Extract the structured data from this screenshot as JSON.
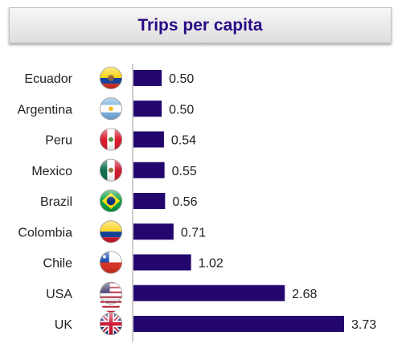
{
  "colors": {
    "bar": "#23076f",
    "title": "#2a0a86",
    "axis": "#9a9a9a"
  },
  "chart_data": {
    "type": "bar",
    "orientation": "horizontal",
    "title": "Trips per capita",
    "xlabel": "",
    "ylabel": "",
    "categories": [
      "Ecuador",
      "Argentina",
      "Peru",
      "Mexico",
      "Brazil",
      "Colombia",
      "Chile",
      "USA",
      "UK"
    ],
    "values": [
      0.5,
      0.5,
      0.54,
      0.55,
      0.56,
      0.71,
      1.02,
      2.68,
      3.73
    ],
    "value_labels": [
      "0.50",
      "0.50",
      "0.54",
      "0.55",
      "0.56",
      "0.71",
      "1.02",
      "2.68",
      "3.73"
    ],
    "flag_icons": [
      "ecuador-flag-icon",
      "argentina-flag-icon",
      "peru-flag-icon",
      "mexico-flag-icon",
      "brazil-flag-icon",
      "colombia-flag-icon",
      "chile-flag-icon",
      "usa-flag-icon",
      "uk-flag-icon"
    ],
    "xlim": [
      0,
      3.73
    ],
    "grid": false,
    "legend": "none"
  }
}
